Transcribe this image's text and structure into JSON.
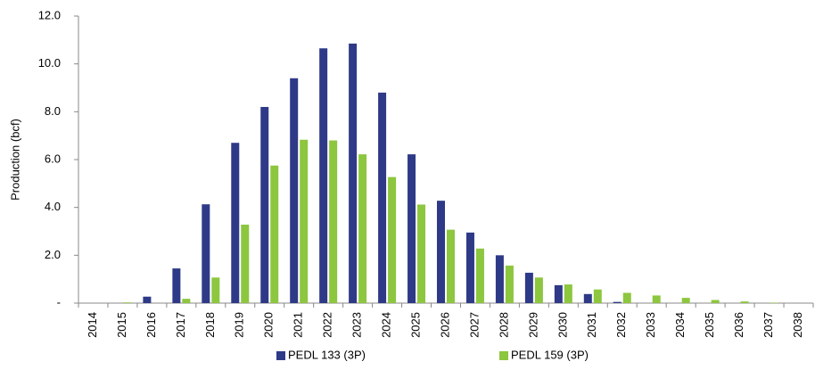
{
  "chart_data": {
    "type": "bar",
    "y_label": "Production (bcf)",
    "categories": [
      "2014",
      "2015",
      "2016",
      "2017",
      "2018",
      "2019",
      "2020",
      "2021",
      "2022",
      "2023",
      "2024",
      "2025",
      "2026",
      "2027",
      "2028",
      "2029",
      "2030",
      "2031",
      "2032",
      "2033",
      "2034",
      "2035",
      "2036",
      "2037",
      "2038"
    ],
    "series": [
      {
        "name": "PEDL 133 (3P)",
        "color": "#2e3a87",
        "values": [
          0,
          0,
          0.27,
          1.45,
          4.13,
          6.7,
          8.2,
          9.4,
          10.65,
          10.85,
          8.8,
          6.22,
          4.28,
          2.95,
          2.0,
          1.27,
          0.75,
          0.38,
          0.05,
          0,
          0,
          0,
          0,
          0,
          0
        ]
      },
      {
        "name": "PEDL 159 (3P)",
        "color": "#8dc63f",
        "values": [
          0,
          0.03,
          0,
          0.18,
          1.07,
          3.28,
          5.75,
          6.83,
          6.8,
          6.22,
          5.27,
          4.12,
          3.07,
          2.28,
          1.57,
          1.07,
          0.78,
          0.57,
          0.43,
          0.32,
          0.22,
          0.13,
          0.07,
          0.02,
          0
        ]
      }
    ],
    "ylim": [
      0,
      12
    ],
    "yticks": [
      {
        "value": 0,
        "label": "-"
      },
      {
        "value": 2,
        "label": "2.0"
      },
      {
        "value": 4,
        "label": "4.0"
      },
      {
        "value": 6,
        "label": "6.0"
      },
      {
        "value": 8,
        "label": "8.0"
      },
      {
        "value": 10,
        "label": "10.0"
      },
      {
        "value": 12,
        "label": "12.0"
      }
    ],
    "grid": false,
    "legend": "bottom"
  }
}
